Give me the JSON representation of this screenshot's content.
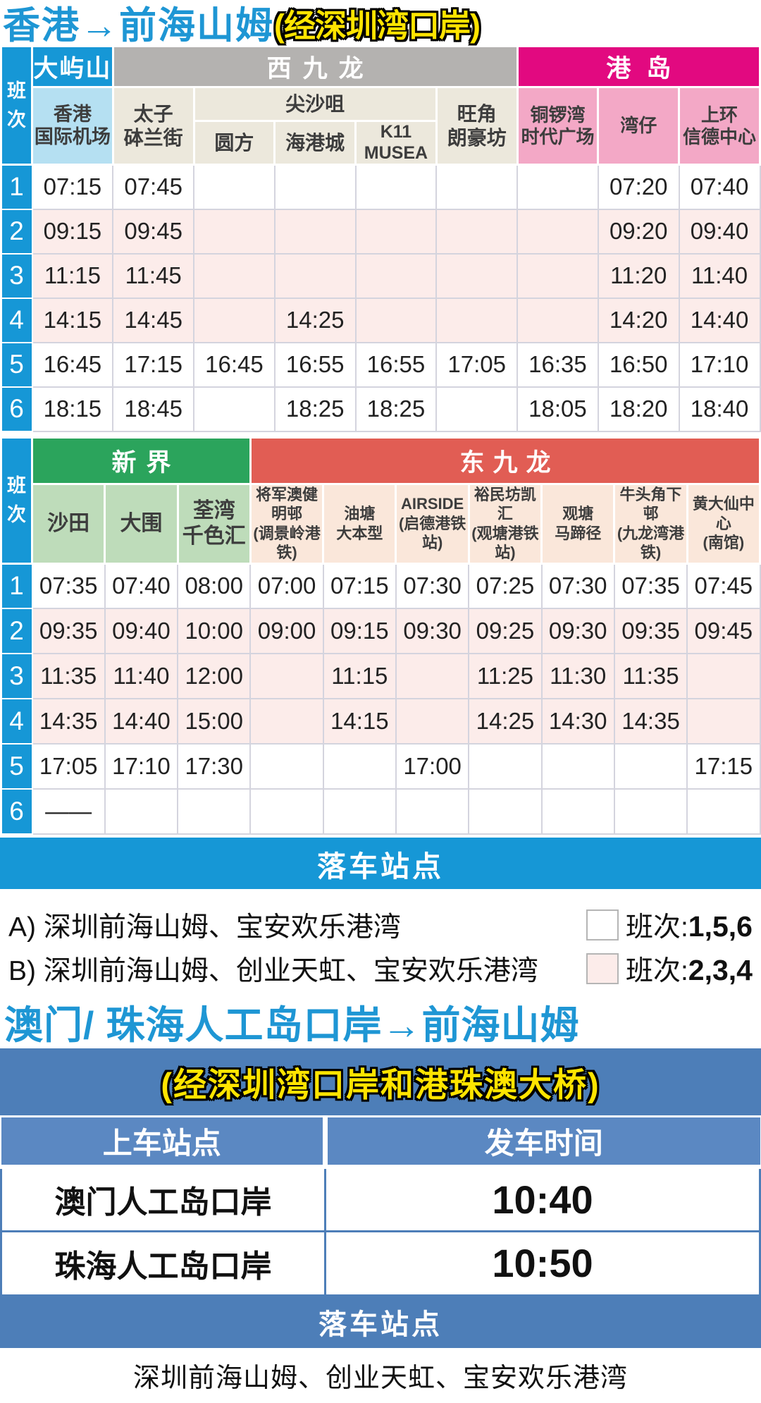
{
  "colors": {
    "accent_blue": "#1697d6",
    "title_blue": "#1e96d4",
    "highlight_yellow": "#ffe400",
    "lantau_blue": "#1697d6",
    "airport_lightblue": "#b5e0f2",
    "west_kowloon_gray": "#b4b2b0",
    "station_beige": "#ece8dc",
    "hk_island_magenta": "#e20980",
    "hk_island_pink": "#f3a8c6",
    "new_territories_green": "#2ba45c",
    "new_territories_lightgreen": "#bedcba",
    "east_kowloon_red": "#e15d54",
    "east_kowloon_salmon": "#fae7da",
    "shaded_row_pink": "#fcecea",
    "steel_blue": "#4d7eb8"
  },
  "header1": {
    "title": "香港→前海山姆",
    "via": "(经深圳湾口岸)"
  },
  "table1": {
    "corner": "班\n次",
    "groups": [
      {
        "label": "大屿山"
      },
      {
        "label": "西九龙"
      },
      {
        "label": "港岛"
      }
    ],
    "tst_group": "尖沙咀",
    "stations": [
      "香港\n国际机场",
      "太子\n砵兰街",
      "圆方",
      "海港城",
      "K11 MUSEA",
      "旺角\n朗豪坊",
      "铜锣湾\n时代广场",
      "湾仔",
      "上环\n信德中心"
    ],
    "rows": [
      {
        "no": "1",
        "shade": "a",
        "times": [
          "07:15",
          "07:45",
          "",
          "",
          "",
          "",
          "",
          "07:20",
          "07:40"
        ]
      },
      {
        "no": "2",
        "shade": "b",
        "times": [
          "09:15",
          "09:45",
          "",
          "",
          "",
          "",
          "",
          "09:20",
          "09:40"
        ]
      },
      {
        "no": "3",
        "shade": "b",
        "times": [
          "11:15",
          "11:45",
          "",
          "",
          "",
          "",
          "",
          "11:20",
          "11:40"
        ]
      },
      {
        "no": "4",
        "shade": "b",
        "times": [
          "14:15",
          "14:45",
          "",
          "14:25",
          "",
          "",
          "",
          "14:20",
          "14:40"
        ]
      },
      {
        "no": "5",
        "shade": "a",
        "times": [
          "16:45",
          "17:15",
          "16:45",
          "16:55",
          "16:55",
          "17:05",
          "16:35",
          "16:50",
          "17:10"
        ]
      },
      {
        "no": "6",
        "shade": "a",
        "times": [
          "18:15",
          "18:45",
          "",
          "18:25",
          "18:25",
          "",
          "18:05",
          "18:20",
          "18:40"
        ]
      }
    ]
  },
  "table2": {
    "corner": "班\n次",
    "groups": [
      {
        "label": "新界"
      },
      {
        "label": "东九龙"
      }
    ],
    "stations": [
      "沙田",
      "大围",
      "荃湾\n千色汇",
      "将军澳健明邨\n(调景岭港铁)",
      "油塘\n大本型",
      "AIRSIDE\n(启德港铁站)",
      "裕民坊凯汇\n(观塘港铁站)",
      "观塘\n马蹄径",
      "牛头角下邨\n(九龙湾港铁)",
      "黄大仙中心\n(南馆)"
    ],
    "rows": [
      {
        "no": "1",
        "shade": "a",
        "times": [
          "07:35",
          "07:40",
          "08:00",
          "07:00",
          "07:15",
          "07:30",
          "07:25",
          "07:30",
          "07:35",
          "07:45"
        ]
      },
      {
        "no": "2",
        "shade": "b",
        "times": [
          "09:35",
          "09:40",
          "10:00",
          "09:00",
          "09:15",
          "09:30",
          "09:25",
          "09:30",
          "09:35",
          "09:45"
        ]
      },
      {
        "no": "3",
        "shade": "b",
        "times": [
          "11:35",
          "11:40",
          "12:00",
          "",
          "11:15",
          "",
          "11:25",
          "11:30",
          "11:35",
          ""
        ]
      },
      {
        "no": "4",
        "shade": "b",
        "times": [
          "14:35",
          "14:40",
          "15:00",
          "",
          "14:15",
          "",
          "14:25",
          "14:30",
          "14:35",
          ""
        ]
      },
      {
        "no": "5",
        "shade": "a",
        "times": [
          "17:05",
          "17:10",
          "17:30",
          "",
          "",
          "17:00",
          "",
          "",
          "",
          "17:15"
        ]
      },
      {
        "no": "6",
        "shade": "a",
        "times": [
          "——",
          "",
          "",
          "",
          "",
          "",
          "",
          "",
          "",
          ""
        ]
      }
    ]
  },
  "dropoff1": {
    "banner": "落车站点"
  },
  "legend": {
    "items": [
      {
        "text": "A) 深圳前海山姆、宝安欢乐港湾",
        "swatch": "a",
        "label": "班次:",
        "trips": "1,5,6"
      },
      {
        "text": "B) 深圳前海山姆、创业天虹、宝安欢乐港湾",
        "swatch": "b",
        "label": "班次:",
        "trips": "2,3,4"
      }
    ]
  },
  "section2": {
    "title": "澳门/ 珠海人工岛口岸→前海山姆",
    "via": "(经深圳湾口岸和港珠澳大桥)",
    "columns": [
      "上车站点",
      "发车时间"
    ],
    "rows": [
      {
        "station": "澳门人工岛口岸",
        "time": "10:40"
      },
      {
        "station": "珠海人工岛口岸",
        "time": "10:50"
      }
    ],
    "dropoff_banner": "落车站点",
    "dropoff_text": "深圳前海山姆、创业天虹、宝安欢乐港湾"
  }
}
